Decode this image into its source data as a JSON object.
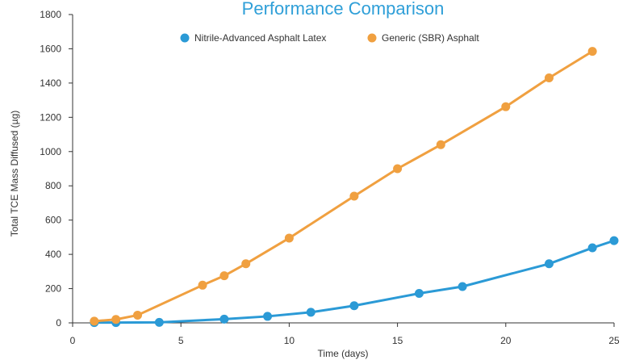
{
  "chart_data": {
    "type": "line",
    "title": "Performance Comparison",
    "xlabel": "Time (days)",
    "ylabel": "Total TCE Mass Diffused (µg)",
    "xlim": [
      0,
      25
    ],
    "ylim": [
      0,
      1800
    ],
    "xticks": [
      0,
      5,
      10,
      15,
      20,
      25
    ],
    "yticks": [
      0,
      200,
      400,
      600,
      800,
      1000,
      1200,
      1400,
      1600,
      1800
    ],
    "grid": false,
    "legend_position": "top-center",
    "series": [
      {
        "name": "Nitrile-Advanced Asphalt Latex",
        "color": "#2b9ad6",
        "x": [
          1,
          2,
          4,
          7,
          9,
          11,
          13,
          16,
          18,
          22,
          24,
          25
        ],
        "y": [
          2,
          2,
          3,
          22,
          38,
          62,
          100,
          172,
          212,
          345,
          438,
          480
        ]
      },
      {
        "name": "Generic (SBR) Asphalt",
        "color": "#f0a040",
        "x": [
          1,
          2,
          3,
          6,
          7,
          8,
          10,
          13,
          15,
          17,
          20,
          22,
          24
        ],
        "y": [
          10,
          20,
          45,
          220,
          275,
          345,
          495,
          740,
          900,
          1040,
          1262,
          1430,
          1585
        ]
      }
    ]
  }
}
